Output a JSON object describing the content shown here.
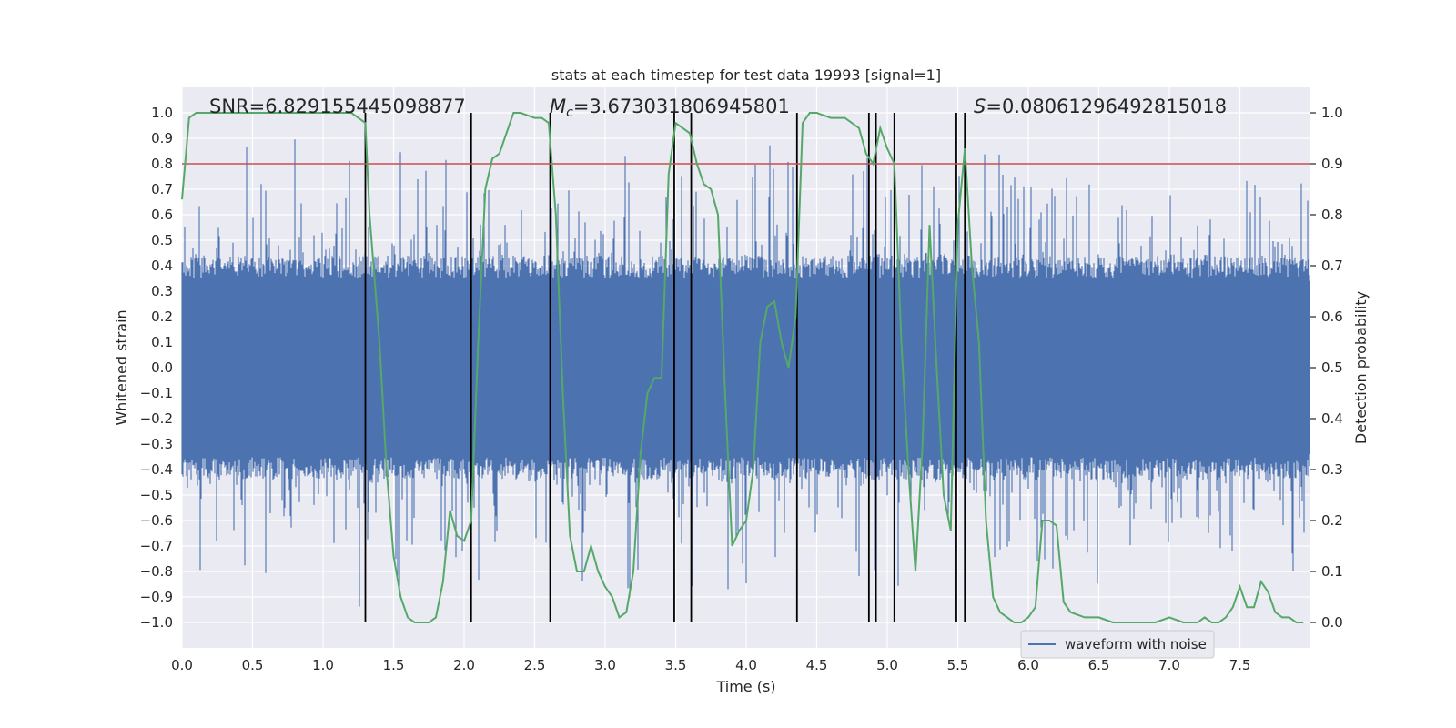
{
  "chart_data": {
    "type": "line",
    "title": "stats at each timestep for test data 19993 [signal=1]",
    "xlabel": "Time (s)",
    "ylabel": "Whitened strain",
    "y2label": "Detection probability",
    "xlim": [
      0.0,
      8.0
    ],
    "ylim": [
      -1.1,
      1.1
    ],
    "y2lim": [
      -0.05,
      1.05
    ],
    "xticks": [
      0.0,
      0.5,
      1.0,
      1.5,
      2.0,
      2.5,
      3.0,
      3.5,
      4.0,
      4.5,
      5.0,
      5.5,
      6.0,
      6.5,
      7.0,
      7.5
    ],
    "xtick_labels": [
      "0.0",
      "0.5",
      "1.0",
      "1.5",
      "2.0",
      "2.5",
      "3.0",
      "3.5",
      "4.0",
      "4.5",
      "5.0",
      "5.5",
      "6.0",
      "6.5",
      "7.0",
      "7.5"
    ],
    "yticks": [
      -1.0,
      -0.9,
      -0.8,
      -0.7,
      -0.6,
      -0.5,
      -0.4,
      -0.3,
      -0.2,
      -0.1,
      0.0,
      0.1,
      0.2,
      0.3,
      0.4,
      0.5,
      0.6,
      0.7,
      0.8,
      0.9,
      1.0
    ],
    "ytick_labels": [
      "−1.0",
      "−0.9",
      "−0.8",
      "−0.7",
      "−0.6",
      "−0.5",
      "−0.4",
      "−0.3",
      "−0.2",
      "−0.1",
      "0.0",
      "0.1",
      "0.2",
      "0.3",
      "0.4",
      "0.5",
      "0.6",
      "0.7",
      "0.8",
      "0.9",
      "1.0"
    ],
    "y2ticks": [
      0.0,
      0.1,
      0.2,
      0.3,
      0.4,
      0.5,
      0.6,
      0.7,
      0.8,
      0.9,
      1.0
    ],
    "y2tick_labels": [
      "0.0",
      "0.1",
      "0.2",
      "0.3",
      "0.4",
      "0.5",
      "0.6",
      "0.7",
      "0.8",
      "0.9",
      "1.0"
    ],
    "annotations": {
      "snr": "SNR=6.829155445098877",
      "mc_symbol": "M",
      "mc_sub": "c",
      "mc_value": "=3.673031806945801",
      "s_symbol": "S",
      "s_value": "=0.08061296492815018"
    },
    "legend": {
      "label": "waveform with noise",
      "position": "lower-right"
    },
    "threshold": {
      "value": 0.8,
      "axis": "left"
    },
    "vertical_lines": [
      1.3,
      2.05,
      2.61,
      3.49,
      3.61,
      4.36,
      4.87,
      4.92,
      5.05,
      5.49,
      5.55
    ],
    "series": [
      {
        "name": "waveform with noise",
        "axis": "left",
        "style": "dense noise, envelope approx ±0.4 with peaks up to ±1.0",
        "envelope": 0.4,
        "peak_max": 1.0
      },
      {
        "name": "detection probability",
        "axis": "right",
        "x": [
          0.0,
          0.05,
          0.1,
          0.2,
          0.4,
          0.7,
          0.9,
          1.1,
          1.2,
          1.25,
          1.3,
          1.33,
          1.4,
          1.45,
          1.5,
          1.55,
          1.6,
          1.65,
          1.7,
          1.75,
          1.8,
          1.85,
          1.9,
          1.95,
          2.0,
          2.05,
          2.1,
          2.15,
          2.2,
          2.25,
          2.3,
          2.35,
          2.4,
          2.5,
          2.55,
          2.6,
          2.65,
          2.7,
          2.75,
          2.8,
          2.85,
          2.9,
          2.95,
          3.0,
          3.05,
          3.1,
          3.15,
          3.2,
          3.25,
          3.3,
          3.35,
          3.4,
          3.45,
          3.5,
          3.55,
          3.6,
          3.65,
          3.7,
          3.75,
          3.8,
          3.85,
          3.9,
          3.95,
          4.0,
          4.05,
          4.1,
          4.15,
          4.2,
          4.25,
          4.3,
          4.35,
          4.4,
          4.45,
          4.5,
          4.6,
          4.7,
          4.8,
          4.85,
          4.9,
          4.95,
          5.0,
          5.05,
          5.1,
          5.15,
          5.2,
          5.25,
          5.3,
          5.35,
          5.4,
          5.45,
          5.5,
          5.55,
          5.6,
          5.65,
          5.7,
          5.75,
          5.8,
          5.85,
          5.9,
          5.95,
          6.0,
          6.05,
          6.1,
          6.15,
          6.2,
          6.25,
          6.3,
          6.4,
          6.5,
          6.6,
          6.7,
          6.8,
          6.9,
          7.0,
          7.1,
          7.2,
          7.25,
          7.3,
          7.35,
          7.4,
          7.45,
          7.5,
          7.55,
          7.6,
          7.65,
          7.7,
          7.75,
          7.8,
          7.85,
          7.9,
          7.95
        ],
        "y": [
          0.83,
          0.99,
          1.0,
          1.0,
          1.0,
          1.0,
          1.0,
          1.0,
          1.0,
          0.99,
          0.98,
          0.8,
          0.55,
          0.3,
          0.13,
          0.05,
          0.01,
          0.0,
          0.0,
          0.0,
          0.01,
          0.08,
          0.22,
          0.17,
          0.16,
          0.2,
          0.55,
          0.85,
          0.91,
          0.92,
          0.96,
          1.0,
          1.0,
          0.99,
          0.99,
          0.98,
          0.8,
          0.45,
          0.17,
          0.1,
          0.1,
          0.15,
          0.1,
          0.07,
          0.05,
          0.01,
          0.02,
          0.1,
          0.33,
          0.45,
          0.48,
          0.48,
          0.88,
          0.98,
          0.97,
          0.96,
          0.9,
          0.86,
          0.85,
          0.8,
          0.45,
          0.15,
          0.18,
          0.2,
          0.3,
          0.55,
          0.62,
          0.63,
          0.55,
          0.5,
          0.6,
          0.98,
          1.0,
          1.0,
          0.99,
          0.99,
          0.97,
          0.92,
          0.9,
          0.97,
          0.93,
          0.9,
          0.55,
          0.3,
          0.1,
          0.35,
          0.78,
          0.5,
          0.25,
          0.18,
          0.78,
          0.93,
          0.7,
          0.55,
          0.2,
          0.05,
          0.02,
          0.01,
          0.0,
          0.0,
          0.01,
          0.03,
          0.2,
          0.2,
          0.19,
          0.04,
          0.02,
          0.01,
          0.01,
          0.0,
          0.0,
          0.0,
          0.0,
          0.01,
          0.0,
          0.0,
          0.01,
          0.0,
          0.0,
          0.01,
          0.03,
          0.07,
          0.03,
          0.03,
          0.08,
          0.06,
          0.02,
          0.01,
          0.01,
          0.0,
          0.0
        ]
      }
    ]
  },
  "colors": {
    "plot_bg": "#eaeaf2",
    "grid": "#ffffff",
    "waveform": "#4c72b0",
    "probability": "#55a868",
    "threshold": "#c44e52",
    "vline": "#000000"
  }
}
